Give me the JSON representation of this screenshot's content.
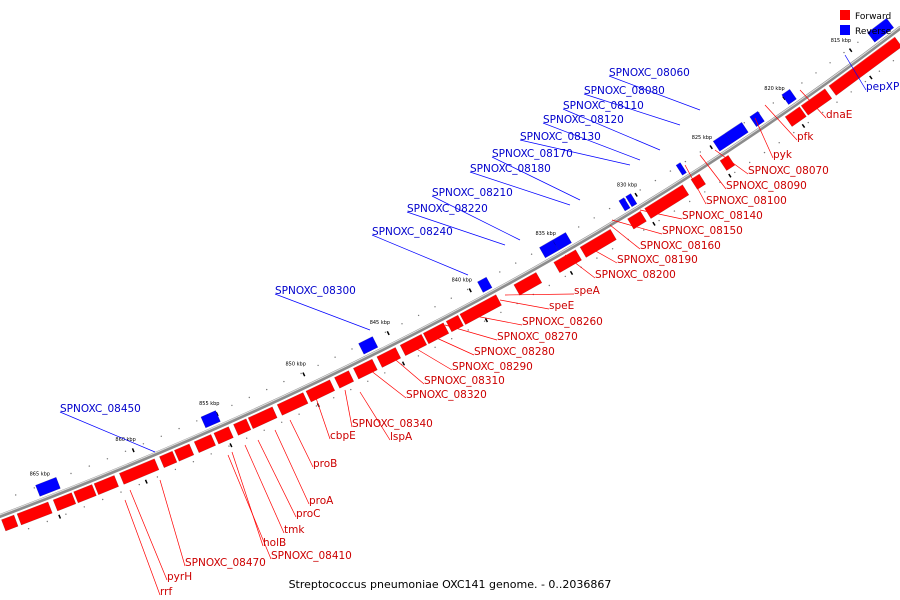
{
  "figure": {
    "caption": "Streptococcus pneumoniae OXC141 genome. - 0..2036867",
    "legend": [
      {
        "label": "Forward",
        "color": "#ff0000"
      },
      {
        "label": "Reverse",
        "color": "#0000ff"
      }
    ],
    "backbone_color": "#999999",
    "forward_color": "#ff0000",
    "reverse_color": "#0000ff",
    "forward_label_color": "#cc0000",
    "reverse_label_color": "#0000cc"
  },
  "ticks": [
    "815 kbp",
    "820 kbp",
    "825 kbp",
    "830 kbp",
    "835 kbp",
    "840 kbp",
    "845 kbp",
    "850 kbp",
    "855 kbp",
    "860 kbp",
    "865 kbp"
  ],
  "forward_genes": [
    "dnaE",
    "pfk",
    "pyk",
    "SPNOXC_08070",
    "SPNOXC_08090",
    "SPNOXC_08100",
    "SPNOXC_08140",
    "SPNOXC_08150",
    "SPNOXC_08160",
    "SPNOXC_08190",
    "SPNOXC_08200",
    "speA",
    "speE",
    "SPNOXC_08260",
    "SPNOXC_08270",
    "SPNOXC_08280",
    "SPNOXC_08290",
    "SPNOXC_08310",
    "SPNOXC_08320",
    "SPNOXC_08340",
    "lspA",
    "cbpE",
    "proB",
    "proA",
    "proC",
    "tmk",
    "holB",
    "SPNOXC_08410",
    "SPNOXC_08470",
    "pyrH",
    "rrf"
  ],
  "reverse_genes": [
    "pepXP",
    "SPNOXC_08060",
    "SPNOXC_08080",
    "SPNOXC_08110",
    "SPNOXC_08120",
    "SPNOXC_08130",
    "SPNOXC_08170",
    "SPNOXC_08180",
    "SPNOXC_08210",
    "SPNOXC_08220",
    "SPNOXC_08240",
    "SPNOXC_08300",
    "SPNOXC_08450"
  ]
}
